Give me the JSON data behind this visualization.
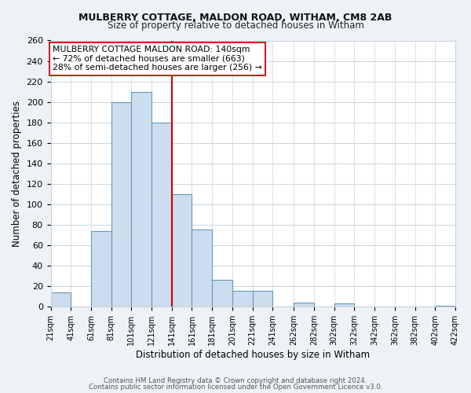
{
  "title": "MULBERRY COTTAGE, MALDON ROAD, WITHAM, CM8 2AB",
  "subtitle": "Size of property relative to detached houses in Witham",
  "xlabel": "Distribution of detached houses by size in Witham",
  "ylabel": "Number of detached properties",
  "bar_lefts": [
    21,
    41,
    61,
    81,
    101,
    121,
    141,
    161,
    181,
    201,
    221,
    241,
    262,
    282,
    302,
    322,
    342,
    362,
    382,
    402
  ],
  "bar_widths": [
    20,
    20,
    20,
    20,
    20,
    20,
    20,
    20,
    20,
    20,
    20,
    21,
    20,
    20,
    20,
    20,
    20,
    20,
    20,
    20
  ],
  "bar_heights": [
    14,
    0,
    74,
    200,
    210,
    180,
    110,
    75,
    26,
    15,
    15,
    0,
    4,
    0,
    3,
    0,
    0,
    0,
    0,
    1
  ],
  "bar_color": "#ccdded",
  "bar_edgecolor": "#6699bb",
  "marker_x": 141,
  "marker_color": "#cc0000",
  "ylim": [
    0,
    260
  ],
  "yticks": [
    0,
    20,
    40,
    60,
    80,
    100,
    120,
    140,
    160,
    180,
    200,
    220,
    240,
    260
  ],
  "xtick_positions": [
    21,
    41,
    61,
    81,
    101,
    121,
    141,
    161,
    181,
    201,
    221,
    241,
    262,
    282,
    302,
    322,
    342,
    362,
    382,
    402,
    422
  ],
  "xtick_labels": [
    "21sqm",
    "41sqm",
    "61sqm",
    "81sqm",
    "101sqm",
    "121sqm",
    "141sqm",
    "161sqm",
    "181sqm",
    "201sqm",
    "221sqm",
    "241sqm",
    "262sqm",
    "282sqm",
    "302sqm",
    "322sqm",
    "342sqm",
    "362sqm",
    "382sqm",
    "402sqm",
    "422sqm"
  ],
  "annotation_line1": "MULBERRY COTTAGE MALDON ROAD: 140sqm",
  "annotation_line2": "← 72% of detached houses are smaller (663)",
  "annotation_line3": "28% of semi-detached houses are larger (256) →",
  "footnote1": "Contains HM Land Registry data © Crown copyright and database right 2024.",
  "footnote2": "Contains public sector information licensed under the Open Government Licence v3.0.",
  "bg_color": "#eef2f6",
  "plot_bg_color": "#ffffff",
  "grid_color": "#c8d4e0",
  "xlim_left": 21,
  "xlim_right": 422
}
